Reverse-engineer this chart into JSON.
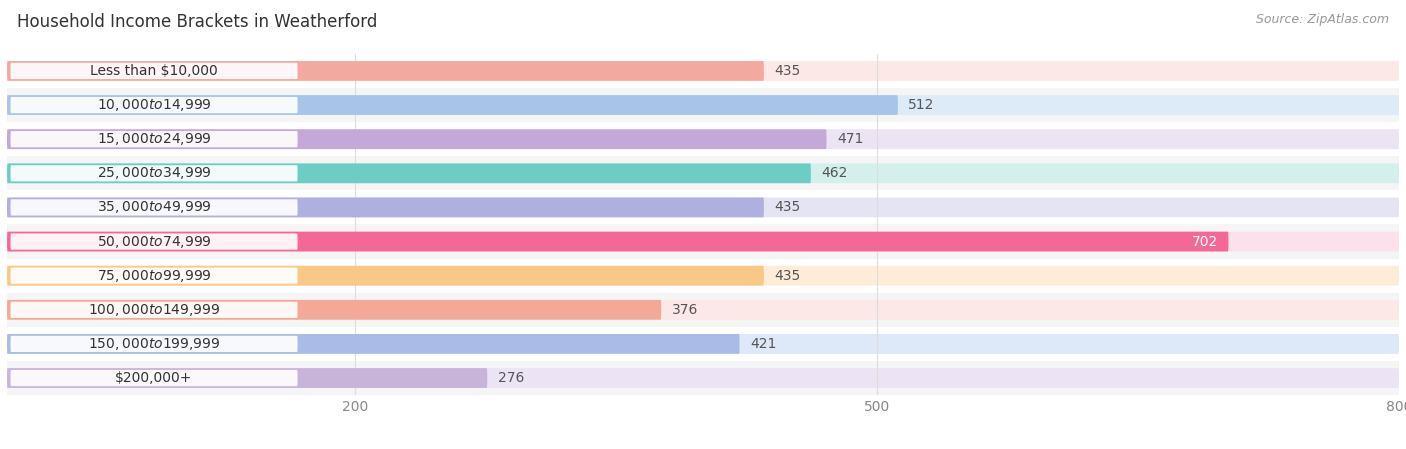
{
  "title": "Household Income Brackets in Weatherford",
  "source": "Source: ZipAtlas.com",
  "categories": [
    "Less than $10,000",
    "$10,000 to $14,999",
    "$15,000 to $24,999",
    "$25,000 to $34,999",
    "$35,000 to $49,999",
    "$50,000 to $74,999",
    "$75,000 to $99,999",
    "$100,000 to $149,999",
    "$150,000 to $199,999",
    "$200,000+"
  ],
  "values": [
    435,
    512,
    471,
    462,
    435,
    702,
    435,
    376,
    421,
    276
  ],
  "bar_colors": [
    "#f4a9a0",
    "#a8c4e8",
    "#c4a8d8",
    "#6dccc4",
    "#b0b0e0",
    "#f46898",
    "#f8c888",
    "#f4a898",
    "#a8bce8",
    "#c8b4d8"
  ],
  "bg_colors": [
    "#fce8e6",
    "#ddeaf8",
    "#ece4f4",
    "#d4f0ec",
    "#e4e4f4",
    "#fce0ec",
    "#fdecd8",
    "#fce8e6",
    "#dde8f8",
    "#ece4f4"
  ],
  "xlim": [
    0,
    800
  ],
  "xticks": [
    200,
    500,
    800
  ],
  "value_label_color_default": "#555555",
  "value_label_color_702": "#ffffff",
  "background_color": "#ffffff",
  "row_alt_color": "#f5f5f5",
  "title_fontsize": 12,
  "source_fontsize": 9,
  "label_fontsize": 10,
  "tick_fontsize": 10,
  "bar_height": 0.58
}
